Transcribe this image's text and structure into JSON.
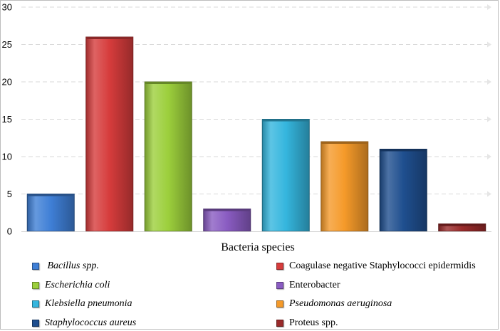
{
  "chart_data": {
    "type": "bar",
    "categories": [
      " Bacillus spp.",
      "Coagulase negative Staphylococci epidermidis",
      "Escherichia coli",
      "Enterobacter",
      "Klebsiella pneumonia",
      "Pseudomonas aeruginosa",
      "Staphylococcus aureus",
      "Proteus spp."
    ],
    "values": [
      5,
      26,
      20,
      3,
      15,
      12,
      11,
      1
    ],
    "colors": [
      "#3f7fd6",
      "#d63c3c",
      "#9ccf3c",
      "#8a5cc2",
      "#35b6de",
      "#f59a2a",
      "#1f4f8f",
      "#9a2a2a"
    ],
    "italic": [
      true,
      false,
      true,
      false,
      true,
      true,
      true,
      false
    ],
    "title": "",
    "xlabel": "Bacteria species",
    "ylabel": "",
    "ylim": [
      0,
      30
    ],
    "yticks": [
      0,
      5,
      10,
      15,
      20,
      25,
      30
    ],
    "grid": true,
    "legend_position": "bottom"
  }
}
